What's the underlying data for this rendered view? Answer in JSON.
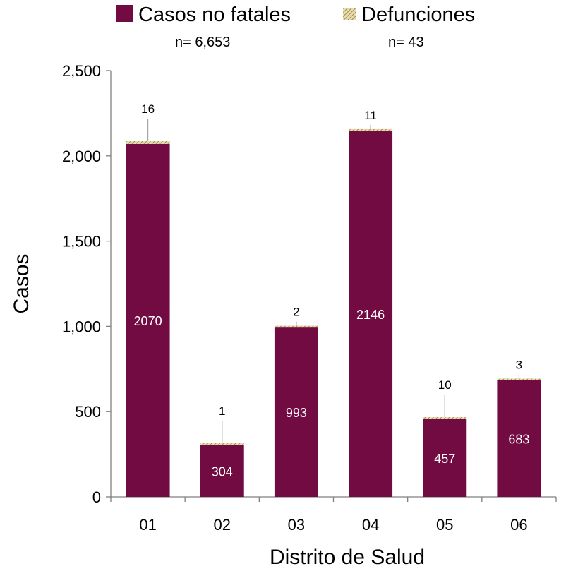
{
  "legend": {
    "series1_label": "Casos no fatales",
    "series1_n": "n= 6,653",
    "series2_label": "Defunciones",
    "series2_n": "n= 43"
  },
  "chart_data": {
    "type": "bar",
    "stacked": true,
    "categories": [
      "01",
      "02",
      "03",
      "04",
      "05",
      "06"
    ],
    "series": [
      {
        "name": "Casos no fatales",
        "values": [
          2070,
          304,
          993,
          2146,
          457,
          683
        ],
        "color": "#720B42"
      },
      {
        "name": "Defunciones",
        "values": [
          16,
          1,
          2,
          11,
          10,
          3
        ],
        "color": "#C9B26A"
      }
    ],
    "xlabel": "Distrito de Salud",
    "ylabel": "Casos",
    "ylim": [
      0,
      2500
    ],
    "yticks": [
      0,
      500,
      1000,
      1500,
      2000,
      2500
    ],
    "ytick_labels": [
      "0",
      "500",
      "1,000",
      "1,500",
      "2,000",
      "2,500"
    ],
    "grid": false,
    "legend_position": "top"
  }
}
